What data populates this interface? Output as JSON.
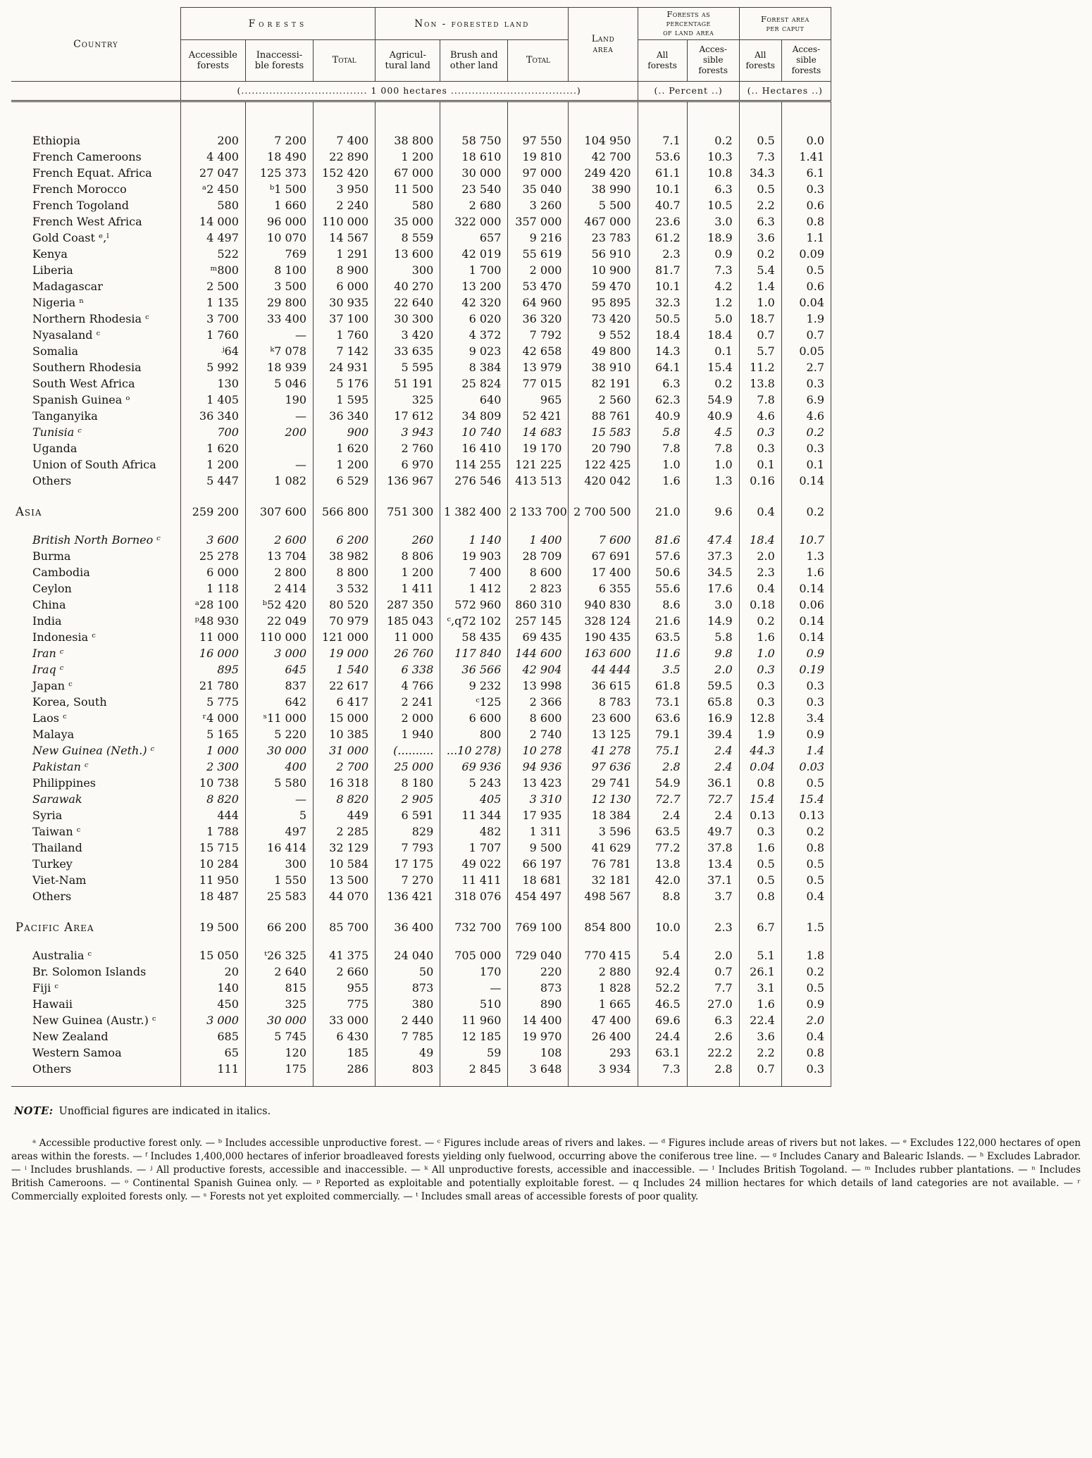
{
  "table": {
    "headers": {
      "country": "Country",
      "forests_group": "Forests",
      "non_forested_group": "Non - forested  land",
      "land_area": "Land\narea",
      "pct_group": "Forests as\npercentage\nof land area",
      "per_caput_group": "Forest area\nper caput",
      "sub": {
        "accessible": "Accessible\nforests",
        "inaccessible": "Inaccessi-\nble forests",
        "total1": "Total",
        "agricultural": "Agricul-\ntural land",
        "brush": "Brush and\nother land",
        "total2": "Total",
        "pct_all": "All\nforests",
        "pct_accessible": "Acces-\nsible\nforests",
        "caput_all": "All\nforests",
        "caput_accessible": "Acces-\nsible\nforests"
      },
      "units": {
        "hectares": "(.................................... 1 000 hectares ....................................)",
        "percent": "(..  Percent  ..)",
        "hectares_caput": "(..  Hectares ..)"
      }
    },
    "rows": [
      {
        "type": "country",
        "label": "Ethiopia",
        "cells": [
          "200",
          "7 200",
          "7 400",
          "38 800",
          "58 750",
          "97 550",
          "104 950",
          "7.1",
          "0.2",
          "0.5",
          "0.0"
        ]
      },
      {
        "type": "country",
        "label": "French Cameroons",
        "cells": [
          "4 400",
          "18 490",
          "22 890",
          "1 200",
          "18 610",
          "19 810",
          "42 700",
          "53.6",
          "10.3",
          "7.3",
          "1.41"
        ]
      },
      {
        "type": "country",
        "label": "French Equat. Africa",
        "cells": [
          "27 047",
          "125 373",
          "152 420",
          "67 000",
          "30 000",
          "97 000",
          "249 420",
          "61.1",
          "10.8",
          "34.3",
          "6.1"
        ]
      },
      {
        "type": "country",
        "label": "French Morocco",
        "cells": [
          "ᵃ2 450",
          "ᵇ1 500",
          "3 950",
          "11 500",
          "23 540",
          "35 040",
          "38 990",
          "10.1",
          "6.3",
          "0.5",
          "0.3"
        ]
      },
      {
        "type": "country",
        "label": "French Togoland",
        "cells": [
          "580",
          "1 660",
          "2 240",
          "580",
          "2 680",
          "3 260",
          "5 500",
          "40.7",
          "10.5",
          "2.2",
          "0.6"
        ]
      },
      {
        "type": "country",
        "label": "French West Africa",
        "cells": [
          "14 000",
          "96 000",
          "110 000",
          "35 000",
          "322 000",
          "357 000",
          "467 000",
          "23.6",
          "3.0",
          "6.3",
          "0.8"
        ]
      },
      {
        "type": "country",
        "label": "Gold Coast ᵉ,ˡ",
        "cells": [
          "4 497",
          "10 070",
          "14 567",
          "8 559",
          "657",
          "9 216",
          "23 783",
          "61.2",
          "18.9",
          "3.6",
          "1.1"
        ]
      },
      {
        "type": "country",
        "label": "Kenya",
        "cells": [
          "522",
          "769",
          "1 291",
          "13 600",
          "42 019",
          "55 619",
          "56 910",
          "2.3",
          "0.9",
          "0.2",
          "0.09"
        ]
      },
      {
        "type": "country",
        "label": "Liberia",
        "cells": [
          "ᵐ800",
          "8 100",
          "8 900",
          "300",
          "1 700",
          "2 000",
          "10 900",
          "81.7",
          "7.3",
          "5.4",
          "0.5"
        ]
      },
      {
        "type": "country",
        "label": "Madagascar",
        "cells": [
          "2 500",
          "3 500",
          "6 000",
          "40 270",
          "13 200",
          "53 470",
          "59 470",
          "10.1",
          "4.2",
          "1.4",
          "0.6"
        ]
      },
      {
        "type": "country",
        "label": "Nigeria ⁿ",
        "cells": [
          "1 135",
          "29 800",
          "30 935",
          "22 640",
          "42 320",
          "64 960",
          "95 895",
          "32.3",
          "1.2",
          "1.0",
          "0.04"
        ]
      },
      {
        "type": "country",
        "label": "Northern Rhodesia ᶜ",
        "cells": [
          "3 700",
          "33 400",
          "37 100",
          "30 300",
          "6 020",
          "36 320",
          "73 420",
          "50.5",
          "5.0",
          "18.7",
          "1.9"
        ]
      },
      {
        "type": "country",
        "label": "Nyasaland ᶜ",
        "cells": [
          "1 760",
          "—",
          "1 760",
          "3 420",
          "4 372",
          "7 792",
          "9 552",
          "18.4",
          "18.4",
          "0.7",
          "0.7"
        ]
      },
      {
        "type": "country",
        "label": "Somalia",
        "cells": [
          "ʲ64",
          "ᵏ7 078",
          "7 142",
          "33 635",
          "9 023",
          "42 658",
          "49 800",
          "14.3",
          "0.1",
          "5.7",
          "0.05"
        ]
      },
      {
        "type": "country",
        "label": "Southern Rhodesia",
        "cells": [
          "5 992",
          "18 939",
          "24 931",
          "5 595",
          "8 384",
          "13 979",
          "38 910",
          "64.1",
          "15.4",
          "11.2",
          "2.7"
        ]
      },
      {
        "type": "country",
        "label": "South West Africa",
        "cells": [
          "130",
          "5 046",
          "5 176",
          "51 191",
          "25 824",
          "77 015",
          "82 191",
          "6.3",
          "0.2",
          "13.8",
          "0.3"
        ]
      },
      {
        "type": "country",
        "label": "Spanish Guinea ᵒ",
        "cells": [
          "1 405",
          "190",
          "1 595",
          "325",
          "640",
          "965",
          "2 560",
          "62.3",
          "54.9",
          "7.8",
          "6.9"
        ]
      },
      {
        "type": "country",
        "label": "Tanganyika",
        "cells": [
          "36 340",
          "—",
          "36 340",
          "17 612",
          "34 809",
          "52 421",
          "88 761",
          "40.9",
          "40.9",
          "4.6",
          "4.6"
        ]
      },
      {
        "type": "country",
        "label": "Tunisia ᶜ",
        "italic": true,
        "cells": [
          "700",
          "200",
          "900",
          "3 943",
          "10 740",
          "14 683",
          "15 583",
          "5.8",
          "4.5",
          "0.3",
          "0.2"
        ]
      },
      {
        "type": "country",
        "label": "Uganda",
        "cells": [
          "1 620",
          "",
          "1 620",
          "2 760",
          "16 410",
          "19 170",
          "20 790",
          "7.8",
          "7.8",
          "0.3",
          "0.3"
        ]
      },
      {
        "type": "country",
        "label": "Union of South Africa",
        "cells": [
          "1 200",
          "—",
          "1 200",
          "6 970",
          "114 255",
          "121 225",
          "122 425",
          "1.0",
          "1.0",
          "0.1",
          "0.1"
        ]
      },
      {
        "type": "country",
        "label": "Others",
        "cells": [
          "5 447",
          "1 082",
          "6 529",
          "136 967",
          "276 546",
          "413 513",
          "420 042",
          "1.6",
          "1.3",
          "0.16",
          "0.14"
        ]
      },
      {
        "type": "section",
        "label": "Asia",
        "cells": [
          "259 200",
          "307 600",
          "566 800",
          "751 300",
          "1 382 400",
          "2 133 700",
          "2 700 500",
          "21.0",
          "9.6",
          "0.4",
          "0.2"
        ]
      },
      {
        "type": "country",
        "label": "British North Borneo ᶜ",
        "italic": true,
        "cells": [
          "3 600",
          "2 600",
          "6 200",
          "260",
          "1 140",
          "1 400",
          "7 600",
          "81.6",
          "47.4",
          "18.4",
          "10.7"
        ]
      },
      {
        "type": "country",
        "label": "Burma",
        "cells": [
          "25 278",
          "13 704",
          "38 982",
          "8 806",
          "19 903",
          "28 709",
          "67 691",
          "57.6",
          "37.3",
          "2.0",
          "1.3"
        ]
      },
      {
        "type": "country",
        "label": "Cambodia",
        "cells": [
          "6 000",
          "2 800",
          "8 800",
          "1 200",
          "7 400",
          "8 600",
          "17 400",
          "50.6",
          "34.5",
          "2.3",
          "1.6"
        ]
      },
      {
        "type": "country",
        "label": "Ceylon",
        "cells": [
          "1 118",
          "2 414",
          "3 532",
          "1 411",
          "1 412",
          "2 823",
          "6 355",
          "55.6",
          "17.6",
          "0.4",
          "0.14"
        ]
      },
      {
        "type": "country",
        "label": "China",
        "cells": [
          "ᵃ28 100",
          "ᵇ52 420",
          "80 520",
          "287 350",
          "572 960",
          "860 310",
          "940 830",
          "8.6",
          "3.0",
          "0.18",
          "0.06"
        ]
      },
      {
        "type": "country",
        "label": "India",
        "cells": [
          "ᵖ48 930",
          "22 049",
          "70 979",
          "185 043",
          "ᶜ,q72 102",
          "257 145",
          "328 124",
          "21.6",
          "14.9",
          "0.2",
          "0.14"
        ]
      },
      {
        "type": "country",
        "label": "Indonesia ᶜ",
        "cells": [
          "11 000",
          "110 000",
          "121 000",
          "11 000",
          "58 435",
          "69 435",
          "190 435",
          "63.5",
          "5.8",
          "1.6",
          "0.14"
        ]
      },
      {
        "type": "country",
        "label": "Iran ᶜ",
        "italic": true,
        "cells": [
          "16 000",
          "3 000",
          "19 000",
          "26 760",
          "117 840",
          "144 600",
          "163 600",
          "11.6",
          "9.8",
          "1.0",
          "0.9"
        ]
      },
      {
        "type": "country",
        "label": "Iraq ᶜ",
        "italic": true,
        "cells": [
          "895",
          "645",
          "1 540",
          "6 338",
          "36 566",
          "42 904",
          "44 444",
          "3.5",
          "2.0",
          "0.3",
          "0.19"
        ]
      },
      {
        "type": "country",
        "label": "Japan ᶜ",
        "cells": [
          "21 780",
          "837",
          "22 617",
          "4 766",
          "9 232",
          "13 998",
          "36 615",
          "61.8",
          "59.5",
          "0.3",
          "0.3"
        ]
      },
      {
        "type": "country",
        "label": "Korea, South",
        "cells": [
          "5 775",
          "642",
          "6 417",
          "2 241",
          "ᶜ125",
          "2 366",
          "8 783",
          "73.1",
          "65.8",
          "0.3",
          "0.3"
        ]
      },
      {
        "type": "country",
        "label": "Laos ᶜ",
        "cells": [
          "ʳ4 000",
          "ˢ11 000",
          "15 000",
          "2 000",
          "6 600",
          "8 600",
          "23 600",
          "63.6",
          "16.9",
          "12.8",
          "3.4"
        ]
      },
      {
        "type": "country",
        "label": "Malaya",
        "cells": [
          "5 165",
          "5 220",
          "10 385",
          "1 940",
          "800",
          "2 740",
          "13 125",
          "79.1",
          "39.4",
          "1.9",
          "0.9"
        ]
      },
      {
        "type": "country",
        "label": "New Guinea (Neth.) ᶜ",
        "italic": true,
        "cells": [
          "1 000",
          "30 000",
          "31 000",
          "(..........",
          "...10 278)",
          "10 278",
          "41 278",
          "75.1",
          "2.4",
          "44.3",
          "1.4"
        ]
      },
      {
        "type": "country",
        "label": "Pakistan ᶜ",
        "italic": true,
        "cells": [
          "2 300",
          "400",
          "2 700",
          "25 000",
          "69 936",
          "94 936",
          "97 636",
          "2.8",
          "2.4",
          "0.04",
          "0.03"
        ]
      },
      {
        "type": "country",
        "label": "Philippines",
        "cells": [
          "10 738",
          "5 580",
          "16 318",
          "8 180",
          "5 243",
          "13 423",
          "29 741",
          "54.9",
          "36.1",
          "0.8",
          "0.5"
        ]
      },
      {
        "type": "country",
        "label": "Sarawak",
        "italic": true,
        "cells": [
          "8 820",
          "—",
          "8 820",
          "2 905",
          "405",
          "3 310",
          "12 130",
          "72.7",
          "72.7",
          "15.4",
          "15.4"
        ]
      },
      {
        "type": "country",
        "label": "Syria",
        "cells": [
          "444",
          "5",
          "449",
          "6 591",
          "11 344",
          "17 935",
          "18 384",
          "2.4",
          "2.4",
          "0.13",
          "0.13"
        ]
      },
      {
        "type": "country",
        "label": "Taiwan ᶜ",
        "cells": [
          "1 788",
          "497",
          "2 285",
          "829",
          "482",
          "1 311",
          "3 596",
          "63.5",
          "49.7",
          "0.3",
          "0.2"
        ]
      },
      {
        "type": "country",
        "label": "Thailand",
        "cells": [
          "15 715",
          "16 414",
          "32 129",
          "7 793",
          "1 707",
          "9 500",
          "41 629",
          "77.2",
          "37.8",
          "1.6",
          "0.8"
        ]
      },
      {
        "type": "country",
        "label": "Turkey",
        "cells": [
          "10 284",
          "300",
          "10 584",
          "17 175",
          "49 022",
          "66 197",
          "76 781",
          "13.8",
          "13.4",
          "0.5",
          "0.5"
        ]
      },
      {
        "type": "country",
        "label": "Viet-Nam",
        "cells": [
          "11 950",
          "1 550",
          "13 500",
          "7 270",
          "11 411",
          "18 681",
          "32 181",
          "42.0",
          "37.1",
          "0.5",
          "0.5"
        ]
      },
      {
        "type": "country",
        "label": "Others",
        "cells": [
          "18 487",
          "25 583",
          "44 070",
          "136 421",
          "318 076",
          "454 497",
          "498 567",
          "8.8",
          "3.7",
          "0.8",
          "0.4"
        ]
      },
      {
        "type": "section",
        "label": "Pacific Area",
        "cells": [
          "19 500",
          "66 200",
          "85 700",
          "36 400",
          "732 700",
          "769 100",
          "854 800",
          "10.0",
          "2.3",
          "6.7",
          "1.5"
        ]
      },
      {
        "type": "country",
        "label": "Australia ᶜ",
        "cells": [
          "15 050",
          "ᵗ26 325",
          "41 375",
          "24 040",
          "705 000",
          "729 040",
          "770 415",
          "5.4",
          "2.0",
          "5.1",
          "1.8"
        ]
      },
      {
        "type": "country",
        "label": "Br. Solomon Islands",
        "cells": [
          "20",
          "2 640",
          "2 660",
          "50",
          "170",
          "220",
          "2 880",
          "92.4",
          "0.7",
          "26.1",
          "0.2"
        ]
      },
      {
        "type": "country",
        "label": "Fiji ᶜ",
        "cells": [
          "140",
          "815",
          "955",
          "873",
          "—",
          "873",
          "1 828",
          "52.2",
          "7.7",
          "3.1",
          "0.5"
        ]
      },
      {
        "type": "country",
        "label": "Hawaii",
        "cells": [
          "450",
          "325",
          "775",
          "380",
          "510",
          "890",
          "1 665",
          "46.5",
          "27.0",
          "1.6",
          "0.9"
        ]
      },
      {
        "type": "country",
        "label": "New Guinea (Austr.) ᶜ",
        "italic_cells": [
          0,
          1,
          10
        ],
        "cells": [
          "3 000",
          "30 000",
          "33 000",
          "2 440",
          "11 960",
          "14 400",
          "47 400",
          "69.6",
          "6.3",
          "22.4",
          "2.0"
        ]
      },
      {
        "type": "country",
        "label": "New Zealand",
        "cells": [
          "685",
          "5 745",
          "6 430",
          "7 785",
          "12 185",
          "19 970",
          "26 400",
          "24.4",
          "2.6",
          "3.6",
          "0.4"
        ]
      },
      {
        "type": "country",
        "label": "Western Samoa",
        "cells": [
          "65",
          "120",
          "185",
          "49",
          "59",
          "108",
          "293",
          "63.1",
          "22.2",
          "2.2",
          "0.8"
        ]
      },
      {
        "type": "country",
        "label": "Others",
        "cells": [
          "111",
          "175",
          "286",
          "803",
          "2 845",
          "3 648",
          "3 934",
          "7.3",
          "2.8",
          "0.7",
          "0.3"
        ]
      }
    ]
  },
  "note": {
    "label": "NOTE:",
    "text": "Unofficial figures are indicated in italics."
  },
  "footnotes": "ᵃ Accessible productive forest only. — ᵇ Includes accessible unproductive forest. — ᶜ Figures include areas of rivers and lakes. — ᵈ Figures include areas of rivers but not lakes. — ᵉ Excludes 122,000 hectares of open areas within the forests. — ᶠ Includes 1,400,000 hectares of inferior broadleaved forests yielding only fuelwood, occurring above the coniferous tree line. — ᵍ Includes Canary and Balearic Islands. — ʰ Excludes Labrador. — ⁱ Includes brushlands. — ʲ All productive forests, accessible and inaccessible. — ᵏ All unproductive forests, accessible and inaccessible. — ˡ Includes British Togoland. — ᵐ Includes rubber plantations. — ⁿ Includes British Cameroons. — ᵒ Continental Spanish Guinea only. — ᵖ Reported as exploitable and potentially exploitable forest. — q Includes 24 million hectares for which details of land categories are not available. — ʳ Commercially exploited forests only. — ˢ Forests not yet exploited commercially. — ᵗ Includes small areas of accessible forests of poor quality."
}
